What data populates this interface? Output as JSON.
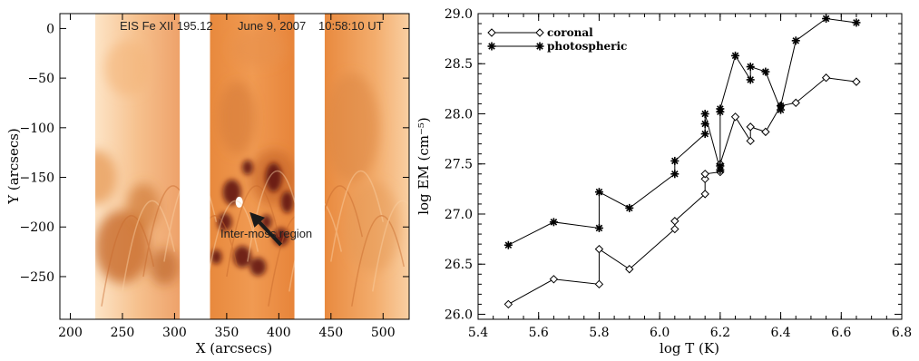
{
  "chart_data": [
    {
      "type": "image",
      "annotation_title": "EIS Fe XII 195.12",
      "annotation_date": "June 9, 2007",
      "annotation_time": "10:58:10 UT",
      "arrow_label": "Inter-moss region",
      "xlabel": "X (arcsecs)",
      "ylabel": "Y (arcsecs)",
      "xlim": [
        190,
        525
      ],
      "ylim": [
        -293,
        15
      ],
      "x_ticks": [
        "200",
        "250",
        "300",
        "350",
        "400",
        "450",
        "500"
      ],
      "y_ticks": [
        "0",
        "−50",
        "−100",
        "−150",
        "−200",
        "−250"
      ],
      "data_gaps_x": [
        [
          190,
          224
        ],
        [
          305,
          334
        ],
        [
          415,
          444
        ]
      ],
      "arrow": {
        "from": [
          402,
          -218
        ],
        "to": [
          372,
          -185
        ]
      }
    },
    {
      "type": "line",
      "xlabel": "log T (K)",
      "ylabel": "log EM (cm⁻⁵)",
      "xlim": [
        5.4,
        6.8
      ],
      "ylim": [
        25.95,
        29.0
      ],
      "x_ticks": [
        "5.4",
        "5.6",
        "5.8",
        "6.0",
        "6.2",
        "6.4",
        "6.6",
        "6.8"
      ],
      "y_ticks": [
        "26.0",
        "26.5",
        "27.0",
        "27.5",
        "28.0",
        "28.5",
        "29.0"
      ],
      "legend_position": "top-left",
      "series": [
        {
          "name": "coronal",
          "marker": "diamond",
          "x": [
            5.5,
            5.65,
            5.8,
            5.8,
            5.9,
            6.05,
            6.05,
            6.15,
            6.15,
            6.15,
            6.2,
            6.2,
            6.25,
            6.3,
            6.3,
            6.35,
            6.4,
            6.45,
            6.55,
            6.65
          ],
          "y": [
            26.1,
            26.35,
            26.3,
            26.65,
            26.45,
            26.85,
            26.93,
            27.2,
            27.35,
            27.4,
            27.42,
            27.5,
            27.97,
            27.73,
            27.87,
            27.82,
            28.08,
            28.11,
            28.36,
            28.32
          ]
        },
        {
          "name": "photospheric",
          "marker": "asterisk",
          "x": [
            5.5,
            5.65,
            5.8,
            5.8,
            5.9,
            6.05,
            6.05,
            6.15,
            6.15,
            6.15,
            6.2,
            6.2,
            6.2,
            6.2,
            6.25,
            6.3,
            6.3,
            6.35,
            6.4,
            6.4,
            6.45,
            6.55,
            6.65
          ],
          "y": [
            26.69,
            26.92,
            26.86,
            27.22,
            27.06,
            27.4,
            27.53,
            27.8,
            27.9,
            28.0,
            27.44,
            27.48,
            28.02,
            28.05,
            28.58,
            28.34,
            28.47,
            28.42,
            28.04,
            28.08,
            28.73,
            28.95,
            28.91
          ]
        }
      ]
    }
  ]
}
